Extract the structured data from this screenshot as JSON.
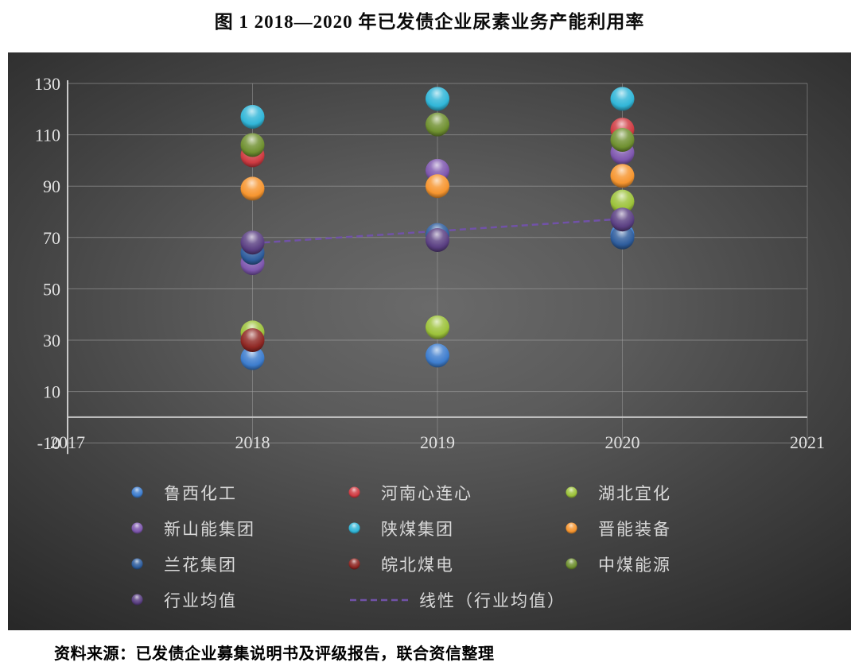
{
  "page": {
    "title": "图 1  2018—2020 年已发债企业尿素业务产能利用率",
    "source": "资料来源：已发债企业募集说明书及评级报告，联合资信整理"
  },
  "chart_data": {
    "type": "scatter",
    "title": "图 1 2018—2020 年已发债企业尿素业务产能利用率",
    "xlabel": "",
    "ylabel": "",
    "x_axis": {
      "min": 2017,
      "max": 2021,
      "ticks": [
        2017,
        2018,
        2019,
        2020,
        2021
      ]
    },
    "y_axis": {
      "min": -10,
      "max": 130,
      "ticks": [
        130,
        110,
        90,
        70,
        50,
        30,
        10,
        -10
      ]
    },
    "grid": true,
    "legend_position": "bottom",
    "background": "dark-gray-gradient",
    "series": [
      {
        "name": "鲁西化工",
        "color": "#3d7dce",
        "points": [
          [
            2018,
            23
          ],
          [
            2019,
            24
          ],
          [
            2020,
            71
          ]
        ]
      },
      {
        "name": "河南心连心",
        "color": "#cf3b42",
        "points": [
          [
            2018,
            102
          ],
          [
            2020,
            112
          ]
        ]
      },
      {
        "name": "湖北宜化",
        "color": "#9cc23a",
        "points": [
          [
            2018,
            33
          ],
          [
            2019,
            35
          ],
          [
            2020,
            84
          ]
        ]
      },
      {
        "name": "新山能集团",
        "color": "#7e57ae",
        "points": [
          [
            2018,
            60
          ],
          [
            2019,
            96
          ],
          [
            2020,
            103
          ]
        ]
      },
      {
        "name": "陕煤集团",
        "color": "#31b6d8",
        "points": [
          [
            2018,
            117
          ],
          [
            2019,
            124
          ],
          [
            2020,
            124
          ]
        ]
      },
      {
        "name": "晋能装备",
        "color": "#f6952f",
        "points": [
          [
            2018,
            89
          ],
          [
            2019,
            90
          ],
          [
            2020,
            94
          ]
        ]
      },
      {
        "name": "兰花集团",
        "color": "#2e5d9d",
        "points": [
          [
            2018,
            64
          ],
          [
            2019,
            71
          ],
          [
            2020,
            70
          ]
        ]
      },
      {
        "name": "皖北煤电",
        "color": "#8f2723",
        "points": [
          [
            2018,
            30
          ]
        ]
      },
      {
        "name": "中煤能源",
        "color": "#6f9030",
        "points": [
          [
            2018,
            106
          ],
          [
            2019,
            114
          ],
          [
            2020,
            108
          ]
        ]
      },
      {
        "name": "行业均值",
        "color": "#5a3f82",
        "points": [
          [
            2018,
            68
          ],
          [
            2019,
            69
          ],
          [
            2020,
            77
          ]
        ]
      }
    ],
    "trendline": {
      "label": "线性（行业均值）",
      "color": "#7152a8",
      "style": "dashed",
      "from": [
        2018,
        67.5
      ],
      "to": [
        2020,
        77.5
      ]
    },
    "legend_rows": [
      [
        "鲁西化工",
        "河南心连心",
        "湖北宜化"
      ],
      [
        "新山能集团",
        "陕煤集团",
        "晋能装备"
      ],
      [
        "兰花集团",
        "皖北煤电",
        "中煤能源"
      ],
      [
        "行业均值",
        "线性（行业均值）"
      ]
    ]
  }
}
